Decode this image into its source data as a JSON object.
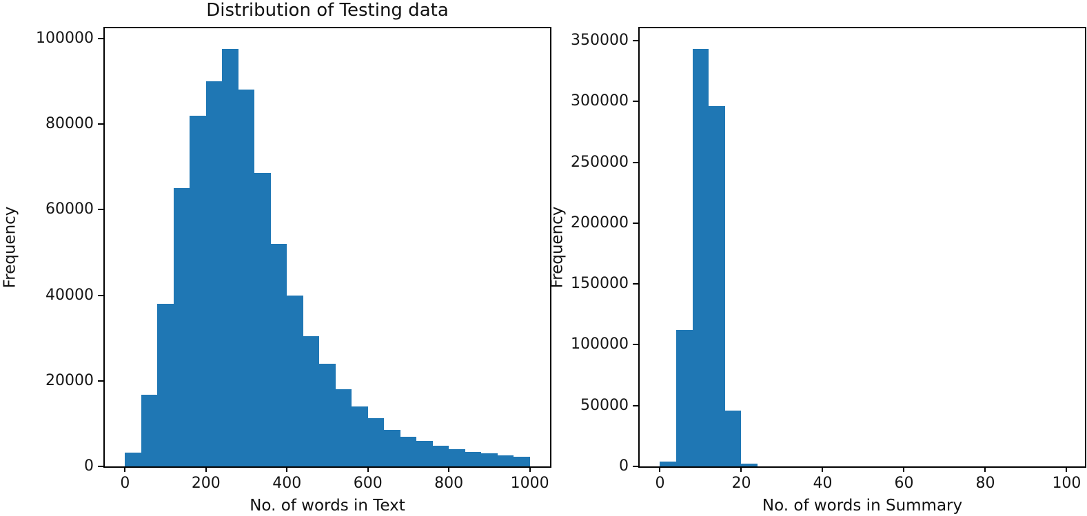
{
  "figure": {
    "background": "#ffffff",
    "text_color": "#111111"
  },
  "chart_data": [
    {
      "type": "bar",
      "subtype": "histogram",
      "title": "Distribution of Testing data",
      "xlabel": "No. of words in Text",
      "ylabel": "Frequency",
      "bar_color": "#1f77b4",
      "bin_start": 0,
      "bin_width": 40,
      "values": [
        3200,
        16800,
        38000,
        65000,
        82000,
        90000,
        97500,
        88000,
        68500,
        52000,
        40000,
        30500,
        24000,
        18000,
        14000,
        11200,
        8500,
        7000,
        6000,
        4800,
        4000,
        3400,
        3000,
        2600,
        2300
      ],
      "xlim": [
        -50,
        1050
      ],
      "ylim": [
        0,
        102375
      ],
      "xticks": [
        0,
        200,
        400,
        600,
        800,
        1000
      ],
      "yticks": [
        0,
        20000,
        40000,
        60000,
        80000,
        100000
      ],
      "grid": false,
      "legend": null
    },
    {
      "type": "bar",
      "subtype": "histogram",
      "title": "",
      "xlabel": "No. of words in Summary",
      "ylabel": "Frequency",
      "bar_color": "#1f77b4",
      "bin_start": 0,
      "bin_width": 4,
      "values": [
        4000,
        112000,
        343000,
        296000,
        46000,
        2200
      ],
      "xlim": [
        -5,
        104.5
      ],
      "ylim": [
        0,
        360150
      ],
      "xticks": [
        0,
        20,
        40,
        60,
        80,
        100
      ],
      "yticks": [
        0,
        50000,
        100000,
        150000,
        200000,
        250000,
        300000,
        350000
      ],
      "grid": false,
      "legend": null
    }
  ]
}
